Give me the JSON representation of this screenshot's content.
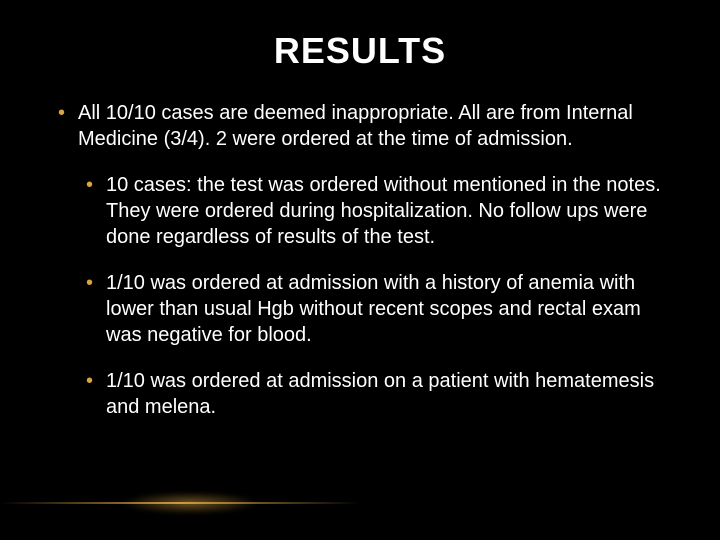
{
  "slide": {
    "title": "RESULTS",
    "title_fontsize": 36,
    "title_color": "#ffffff",
    "background_color": "#000000",
    "bullet_marker_color": "#d9a441",
    "body_fontsize": 20,
    "body_color": "#ffffff",
    "accent_line_color": "#d9a441",
    "bullets": [
      {
        "level": 1,
        "text": "All 10/10  cases are deemed inappropriate. All are from Internal Medicine (3/4). 2 were ordered at the time of admission."
      },
      {
        "level": 2,
        "text": "10 cases: the test was ordered without mentioned in the notes. They were ordered during hospitalization. No follow ups were done regardless of results of the test."
      },
      {
        "level": 2,
        "text": "1/10 was ordered at admission with a history of anemia with lower than usual Hgb without recent scopes and rectal exam was negative for blood."
      },
      {
        "level": 2,
        "text": " 1/10 was ordered at admission on a patient with hematemesis and melena."
      }
    ]
  }
}
